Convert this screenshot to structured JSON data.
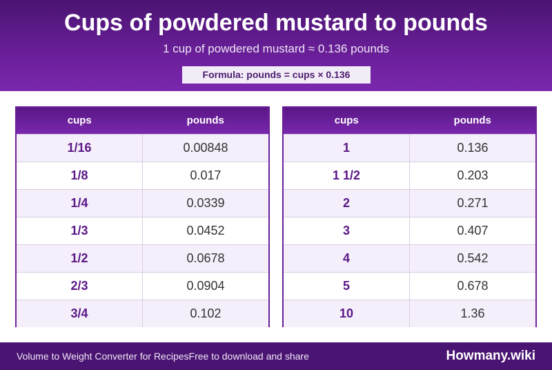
{
  "header": {
    "title": "Cups of powdered mustard to pounds",
    "subtitle": "1 cup of powdered mustard ≈ 0.136 pounds",
    "formula": "Formula: pounds = cups × 0.136"
  },
  "tables": [
    {
      "col1": "cups",
      "col2": "pounds",
      "rows": [
        {
          "cups": "1/16",
          "pounds": "0.00848"
        },
        {
          "cups": "1/8",
          "pounds": "0.017"
        },
        {
          "cups": "1/4",
          "pounds": "0.0339"
        },
        {
          "cups": "1/3",
          "pounds": "0.0452"
        },
        {
          "cups": "1/2",
          "pounds": "0.0678"
        },
        {
          "cups": "2/3",
          "pounds": "0.0904"
        },
        {
          "cups": "3/4",
          "pounds": "0.102"
        }
      ]
    },
    {
      "col1": "cups",
      "col2": "pounds",
      "rows": [
        {
          "cups": "1",
          "pounds": "0.136"
        },
        {
          "cups": "1 1/2",
          "pounds": "0.203"
        },
        {
          "cups": "2",
          "pounds": "0.271"
        },
        {
          "cups": "3",
          "pounds": "0.407"
        },
        {
          "cups": "4",
          "pounds": "0.542"
        },
        {
          "cups": "5",
          "pounds": "0.678"
        },
        {
          "cups": "10",
          "pounds": "1.36"
        }
      ]
    }
  ],
  "footer": {
    "left_text": "Volume to Weight Converter for Recipes",
    "left_text_2": "Free to download and share",
    "brand": "Howmany.wiki"
  },
  "colors": {
    "primary": "#6a1f99",
    "dark": "#4a1472",
    "row_alt": "#f4effa"
  }
}
